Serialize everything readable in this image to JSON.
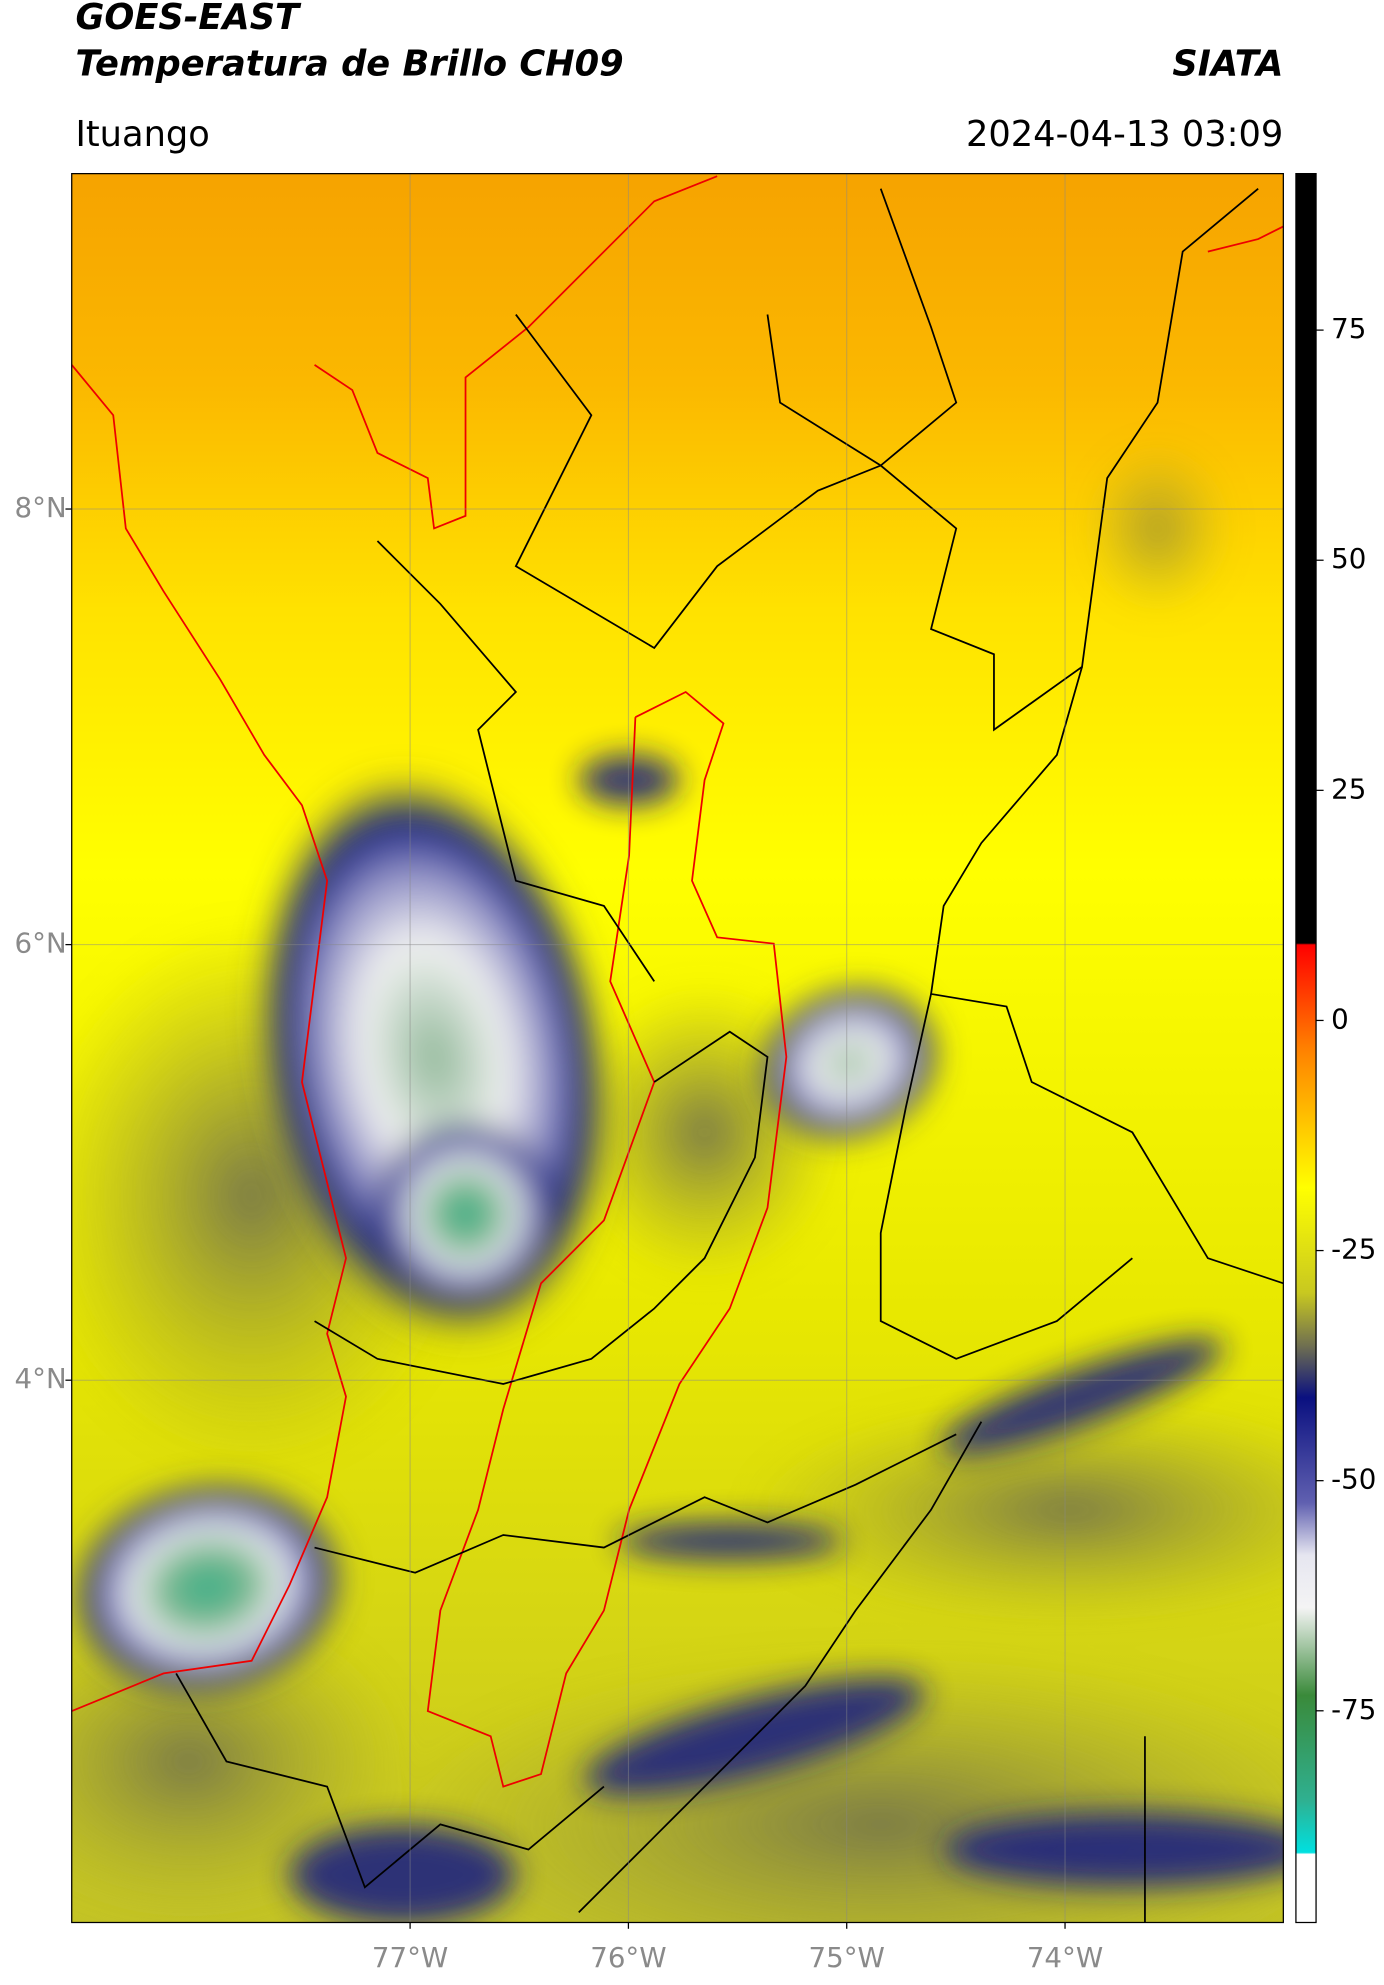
{
  "header": {
    "title": "GOES-EAST",
    "subtitle": "Temperatura de Brillo CH09",
    "credit": "SIATA",
    "location": "Ituango",
    "datetime": "2024-04-13 03:09"
  },
  "map": {
    "lonlim": [
      -78.55,
      -73.0
    ],
    "latlim": [
      1.51,
      9.54
    ],
    "lat_ticks": [
      {
        "value": 8,
        "label": "8°N"
      },
      {
        "value": 6,
        "label": "6°N"
      },
      {
        "value": 4,
        "label": "4°N"
      }
    ],
    "lon_ticks": [
      {
        "value": -77,
        "label": "77°W"
      },
      {
        "value": -76,
        "label": "76°W"
      },
      {
        "value": -75,
        "label": "75°W"
      },
      {
        "value": -74,
        "label": "74°W"
      }
    ]
  },
  "colorbar": {
    "lim": [
      -98,
      92
    ],
    "ticks": [
      75,
      50,
      25,
      0,
      -25,
      -50,
      -75
    ]
  }
}
